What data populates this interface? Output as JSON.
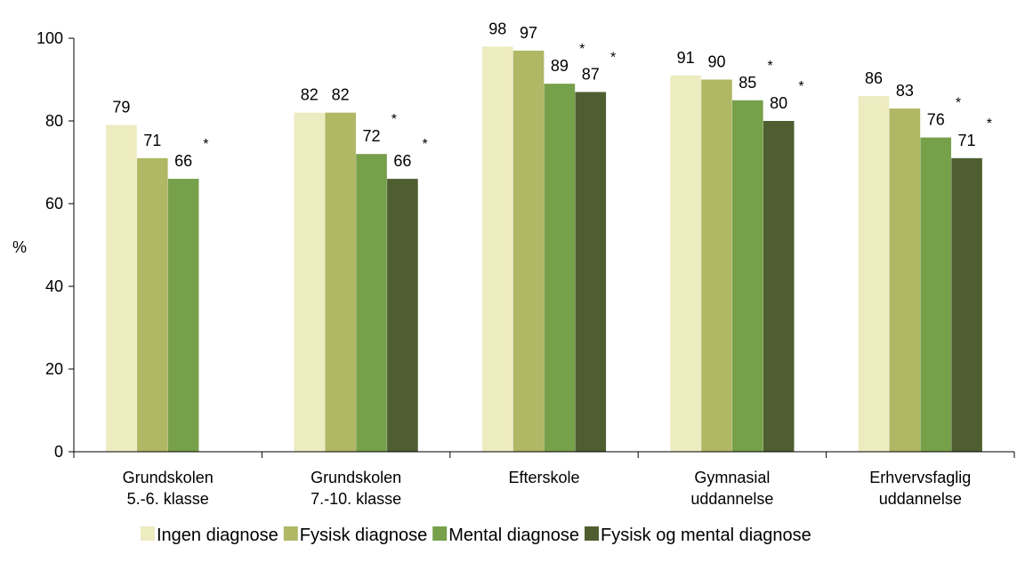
{
  "chart_data": {
    "type": "bar",
    "title": "",
    "xlabel": "",
    "ylabel": "%",
    "ylim": [
      0,
      100
    ],
    "yticks": [
      "0",
      "20",
      "40",
      "60",
      "80",
      "100"
    ],
    "grid": false,
    "legend_position": "bottom",
    "categories": [
      [
        "Grundskolen",
        "5.-6. klasse"
      ],
      [
        "Grundskolen",
        "7.-10. klasse"
      ],
      [
        "Efterskole"
      ],
      [
        "Gymnasial",
        "uddannelse"
      ],
      [
        "Erhvervsfaglig",
        "uddannelse"
      ]
    ],
    "series": [
      {
        "name": "Ingen diagnose",
        "color": "#EDEBC0",
        "values": [
          79,
          82,
          98,
          91,
          86
        ],
        "star": [
          false,
          false,
          false,
          false,
          false
        ]
      },
      {
        "name": "Fysisk diagnose",
        "color": "#B0B765",
        "values": [
          71,
          82,
          97,
          90,
          83
        ],
        "star": [
          false,
          false,
          false,
          false,
          false
        ]
      },
      {
        "name": "Mental diagnose",
        "color": "#76A04A",
        "values": [
          66,
          72,
          89,
          85,
          76
        ],
        "star": [
          true,
          true,
          true,
          true,
          true
        ]
      },
      {
        "name": "Fysisk og mental diagnose",
        "color": "#4F5E30",
        "values": [
          null,
          66,
          87,
          80,
          71
        ],
        "star": [
          false,
          true,
          true,
          true,
          true
        ]
      }
    ],
    "significance_marker": "*"
  }
}
